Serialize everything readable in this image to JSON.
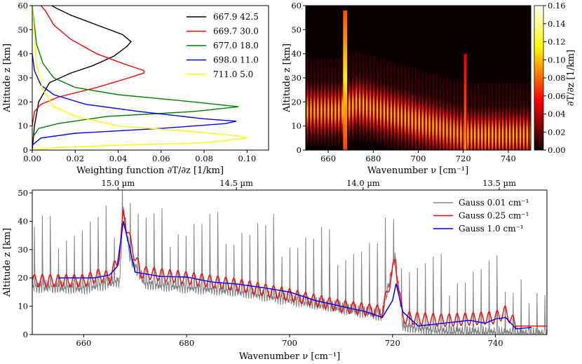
{
  "chart_data": [
    {
      "type": "line",
      "panel": "weighting-functions",
      "xlabel": "Weighting function ∂T/∂z [1/km]",
      "ylabel": "Altitude z [km]",
      "xlim": [
        0.0,
        0.11
      ],
      "ylim": [
        0,
        60
      ],
      "xticks": [
        "0.00",
        "0.02",
        "0.04",
        "0.06",
        "0.08",
        "0.10"
      ],
      "yticks": [
        "0",
        "10",
        "20",
        "30",
        "40",
        "50",
        "60"
      ],
      "legend_position": "top-right",
      "series": [
        {
          "name": "667.9 42.5",
          "color": "#000000",
          "points": [
            [
              0.0,
              0
            ],
            [
              0.001,
              10
            ],
            [
              0.003,
              20
            ],
            [
              0.008,
              28
            ],
            [
              0.018,
              32
            ],
            [
              0.028,
              35
            ],
            [
              0.038,
              39
            ],
            [
              0.044,
              43
            ],
            [
              0.046,
              45
            ],
            [
              0.042,
              48
            ],
            [
              0.03,
              52
            ],
            [
              0.018,
              56
            ],
            [
              0.011,
              59
            ],
            [
              0.009,
              60
            ]
          ]
        },
        {
          "name": "669.7 30.0",
          "color": "#ff0000",
          "points": [
            [
              0.0,
              10
            ],
            [
              0.001,
              16
            ],
            [
              0.004,
              19
            ],
            [
              0.012,
              22
            ],
            [
              0.03,
              26
            ],
            [
              0.045,
              30
            ],
            [
              0.052,
              32
            ],
            [
              0.052,
              33
            ],
            [
              0.042,
              36
            ],
            [
              0.03,
              40
            ],
            [
              0.018,
              46
            ],
            [
              0.01,
              52
            ],
            [
              0.006,
              58
            ],
            [
              0.004,
              60
            ]
          ]
        },
        {
          "name": "677.0 18.0",
          "color": "#008000",
          "points": [
            [
              0.0,
              5
            ],
            [
              0.003,
              9
            ],
            [
              0.012,
              11
            ],
            [
              0.035,
              14
            ],
            [
              0.075,
              16
            ],
            [
              0.096,
              18
            ],
            [
              0.075,
              20
            ],
            [
              0.04,
              23
            ],
            [
              0.02,
              26
            ],
            [
              0.01,
              30
            ],
            [
              0.005,
              36
            ],
            [
              0.002,
              44
            ],
            [
              0.001,
              52
            ],
            [
              0.0,
              60
            ]
          ]
        },
        {
          "name": "698.0 11.0",
          "color": "#0000ff",
          "points": [
            [
              0.0,
              2
            ],
            [
              0.004,
              5
            ],
            [
              0.02,
              7
            ],
            [
              0.06,
              9
            ],
            [
              0.09,
              11
            ],
            [
              0.095,
              12
            ],
            [
              0.08,
              13
            ],
            [
              0.05,
              16
            ],
            [
              0.025,
              19
            ],
            [
              0.01,
              23
            ],
            [
              0.004,
              27
            ],
            [
              0.001,
              33
            ],
            [
              0.0,
              40
            ]
          ]
        },
        {
          "name": "711.0  5.0",
          "color": "#ffff00",
          "points": [
            [
              0.0,
              0
            ],
            [
              0.01,
              1
            ],
            [
              0.04,
              2
            ],
            [
              0.08,
              3
            ],
            [
              0.1,
              5
            ],
            [
              0.095,
              6
            ],
            [
              0.07,
              8
            ],
            [
              0.04,
              10
            ],
            [
              0.02,
              14
            ],
            [
              0.01,
              18
            ],
            [
              0.005,
              25
            ],
            [
              0.002,
              35
            ],
            [
              0.001,
              48
            ],
            [
              0.0,
              60
            ]
          ]
        }
      ]
    },
    {
      "type": "heatmap",
      "panel": "spectral-weighting",
      "xlabel": "Wavenumber ν [cm⁻¹]",
      "ylabel": "Altitude z [km]",
      "xlim": [
        650,
        750
      ],
      "ylim": [
        0,
        60
      ],
      "xticks": [
        "660",
        "680",
        "700",
        "720",
        "740"
      ],
      "yticks": [
        "0",
        "10",
        "20",
        "30",
        "40",
        "50",
        "60"
      ],
      "colorbar": {
        "label": "∂T/∂z [1/km]",
        "range": [
          0.0,
          0.16
        ],
        "ticks": [
          "0.00",
          "0.02",
          "0.04",
          "0.06",
          "0.08",
          "0.10",
          "0.12",
          "0.14",
          "0.16"
        ],
        "colormap": "hot"
      },
      "features": {
        "q_branch_peaks_cm1": [
          667.5,
          720.8
        ],
        "q_branch_peak_altitude_km": [
          58,
          40
        ],
        "line_spacing_cm1": 1.55
      }
    },
    {
      "type": "line",
      "panel": "peak-altitude",
      "xlabel": "Wavenumber ν [cm⁻¹]",
      "ylabel": "Altitude z [km]",
      "xlim": [
        650,
        750
      ],
      "ylim": [
        0,
        51
      ],
      "xticks": [
        "660",
        "680",
        "700",
        "720",
        "740"
      ],
      "yticks": [
        "0",
        "10",
        "20",
        "30",
        "40",
        "50"
      ],
      "top_xticks": [
        "15.0 µm",
        "14.5 µm",
        "14.0 µm",
        "13.5 µm"
      ],
      "top_xtick_positions_cm1": [
        666.67,
        689.66,
        714.29,
        740.74
      ],
      "legend_position": "top-right",
      "series": [
        {
          "name": "Gauss 0.01 cm⁻¹",
          "color": "#808080",
          "baseline": [
            [
              650,
              20
            ],
            [
              660,
              19.5
            ],
            [
              667,
              22
            ],
            [
              667.7,
              48
            ],
            [
              669,
              30
            ],
            [
              672,
              21
            ],
            [
              690,
              18.5
            ],
            [
              700,
              15.5
            ],
            [
              710,
              12.5
            ],
            [
              718,
              10
            ],
            [
              720.5,
              31
            ],
            [
              722,
              6
            ],
            [
              730,
              4
            ],
            [
              750,
              3
            ]
          ],
          "peak_height": 27
        },
        {
          "name": "Gauss 0.25 cm⁻¹",
          "color": "#ff0000",
          "points": [
            [
              650,
              19
            ],
            [
              660,
              19
            ],
            [
              663,
              21
            ],
            [
              665,
              20
            ],
            [
              667,
              28
            ],
            [
              667.7,
              43
            ],
            [
              669,
              33
            ],
            [
              671,
              22
            ],
            [
              680,
              20
            ],
            [
              690,
              17.5
            ],
            [
              700,
              14
            ],
            [
              710,
              10
            ],
            [
              718,
              8
            ],
            [
              720.5,
              26
            ],
            [
              722,
              6
            ],
            [
              730,
              5
            ],
            [
              740,
              6
            ],
            [
              742,
              8
            ],
            [
              744,
              3
            ],
            [
              750,
              3
            ]
          ]
        },
        {
          "name": "Gauss 1.0 cm⁻¹",
          "color": "#0000ff",
          "points": [
            [
              655,
              20
            ],
            [
              662,
              20
            ],
            [
              665,
              21
            ],
            [
              666.5,
              24
            ],
            [
              667.7,
              40
            ],
            [
              669,
              30
            ],
            [
              670,
              22
            ],
            [
              675,
              20.5
            ],
            [
              680,
              20.3
            ],
            [
              685,
              18.5
            ],
            [
              690,
              17.8
            ],
            [
              695,
              16.5
            ],
            [
              700,
              15
            ],
            [
              705,
              12
            ],
            [
              710,
              10
            ],
            [
              715,
              8
            ],
            [
              718,
              6
            ],
            [
              720,
              12
            ],
            [
              720.7,
              18
            ],
            [
              722,
              8
            ],
            [
              725,
              3
            ],
            [
              730,
              4
            ],
            [
              735,
              5
            ],
            [
              738,
              4
            ],
            [
              740,
              5.5
            ],
            [
              742,
              6
            ],
            [
              744,
              2
            ],
            [
              747,
              2.5
            ]
          ]
        }
      ]
    }
  ]
}
